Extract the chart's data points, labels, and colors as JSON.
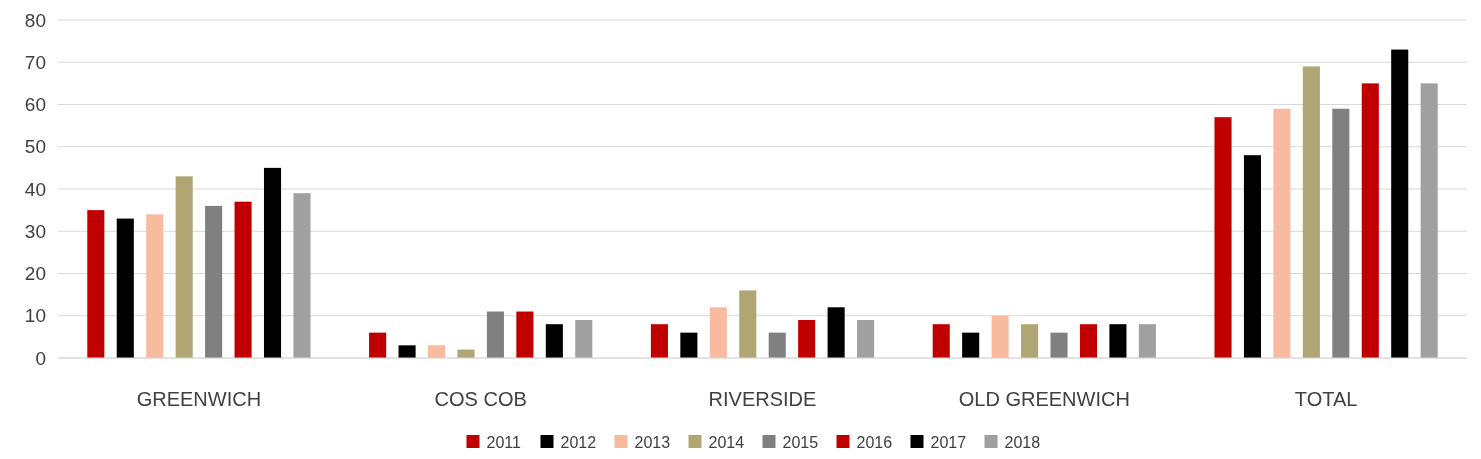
{
  "chart_data": {
    "type": "bar",
    "categories": [
      "GREENWICH",
      "COS COB",
      "RIVERSIDE",
      "OLD GREENWICH",
      "TOTAL"
    ],
    "series": [
      {
        "name": "2011",
        "color": "#c00000",
        "values": [
          35,
          6,
          8,
          8,
          57
        ]
      },
      {
        "name": "2012",
        "color": "#000000",
        "values": [
          33,
          3,
          6,
          6,
          48
        ]
      },
      {
        "name": "2013",
        "color": "#f8bba0",
        "values": [
          34,
          3,
          12,
          10,
          59
        ]
      },
      {
        "name": "2014",
        "color": "#b0a673",
        "values": [
          43,
          2,
          16,
          8,
          69
        ]
      },
      {
        "name": "2015",
        "color": "#808080",
        "values": [
          36,
          11,
          6,
          6,
          59
        ]
      },
      {
        "name": "2016",
        "color": "#c00000",
        "values": [
          37,
          11,
          9,
          8,
          65
        ]
      },
      {
        "name": "2017",
        "color": "#000000",
        "values": [
          45,
          8,
          12,
          8,
          73
        ]
      },
      {
        "name": "2018",
        "color": "#a0a0a0",
        "values": [
          39,
          9,
          9,
          8,
          65
        ]
      }
    ],
    "ylim": [
      0,
      80
    ],
    "yticks": [
      0,
      10,
      20,
      30,
      40,
      50,
      60,
      70,
      80
    ],
    "grid": "y",
    "legend": "bottom"
  }
}
